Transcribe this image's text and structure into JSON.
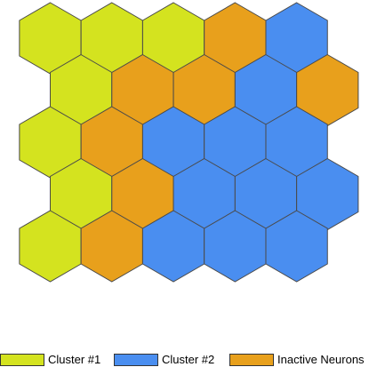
{
  "colors": {
    "cluster1": "#d4e31f",
    "cluster2": "#4a8ef0",
    "inactive": "#e8a01c",
    "stroke": "#4a4a4a"
  },
  "grid": {
    "rows": [
      [
        "cluster1",
        "cluster1",
        "cluster1",
        "inactive",
        "cluster2"
      ],
      [
        "cluster1",
        "inactive",
        "inactive",
        "cluster2",
        "inactive"
      ],
      [
        "cluster1",
        "inactive",
        "cluster2",
        "cluster2",
        "cluster2"
      ],
      [
        "cluster1",
        "inactive",
        "cluster2",
        "cluster2",
        "cluster2"
      ],
      [
        "cluster1",
        "inactive",
        "cluster2",
        "cluster2",
        "cluster2"
      ]
    ]
  },
  "legend": [
    {
      "key": "cluster1",
      "label": "Cluster #1"
    },
    {
      "key": "cluster2",
      "label": "Cluster #2"
    },
    {
      "key": "inactive",
      "label": "Inactive Neurons"
    }
  ]
}
